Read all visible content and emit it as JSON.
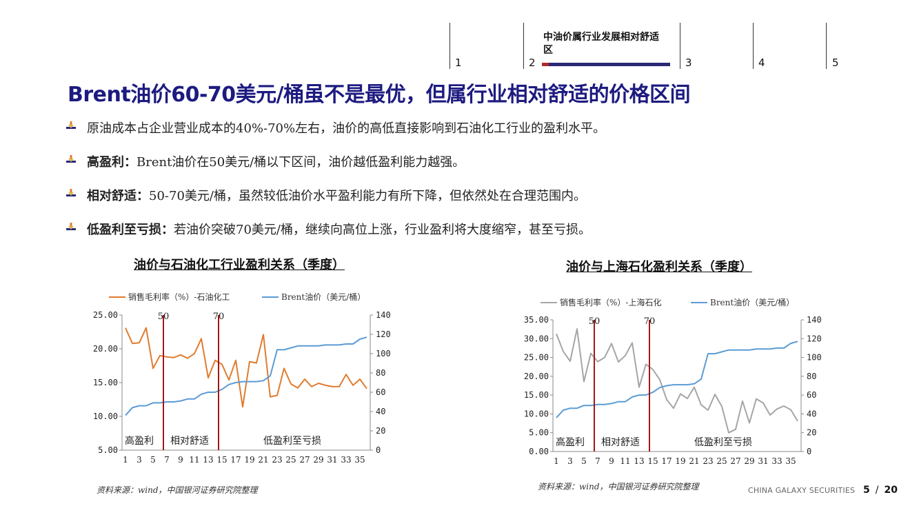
{
  "nav": {
    "items": [
      "1",
      "2",
      "3",
      "4",
      "5"
    ],
    "active_title": "中油价属行业发展相对舒适区"
  },
  "title": "Brent油价60-70美元/桶虽不是最优，但属行业相对舒适的价格区间",
  "bullets": [
    {
      "bold": "",
      "text": "原油成本占企业营业成本的40%-70%左右，油价的高低直接影响到石油化工行业的盈利水平。"
    },
    {
      "bold": "高盈利：",
      "text": "Brent油价在50美元/桶以下区间，油价越低盈利能力越强。"
    },
    {
      "bold": "相对舒适：",
      "text": "50-70美元/桶，虽然较低油价水平盈利能力有所下降，但依然处在合理范围内。"
    },
    {
      "bold": "低盈利至亏损：",
      "text": "若油价突破70美元/桶，继续向高位上涨，行业盈利将大度缩窄，甚至亏损。"
    }
  ],
  "chart_data": [
    {
      "type": "line",
      "title": "油价与石油化工行业盈利关系（季度）",
      "x": [
        1,
        2,
        3,
        4,
        5,
        6,
        7,
        8,
        9,
        10,
        11,
        12,
        13,
        14,
        15,
        16,
        17,
        18,
        19,
        20,
        21,
        22,
        23,
        24,
        25,
        26,
        27,
        28,
        29,
        30,
        31,
        32,
        33,
        34,
        35,
        36
      ],
      "x_tick_labels": [
        "1",
        "3",
        "5",
        "7",
        "9",
        "11",
        "13",
        "15",
        "17",
        "19",
        "21",
        "23",
        "25",
        "27",
        "29",
        "31",
        "33",
        "35"
      ],
      "series": [
        {
          "name": "销售毛利率（%）-石油化工",
          "axis": "left",
          "color": "#e07b2e",
          "values": [
            23.1,
            20.8,
            20.9,
            23.1,
            17.1,
            19.0,
            18.8,
            18.7,
            19.1,
            18.6,
            19.3,
            21.5,
            15.7,
            18.3,
            17.7,
            15.4,
            18.3,
            11.4,
            18.1,
            17.9,
            22.1,
            12.9,
            13.1,
            17.1,
            14.8,
            14.2,
            15.5,
            14.4,
            14.9,
            14.6,
            14.4,
            14.4,
            16.2,
            14.6,
            15.5,
            14.1
          ]
        },
        {
          "name": "Brent油价（美元/桶）",
          "axis": "right",
          "color": "#5b9bd5",
          "values": [
            36,
            44,
            46,
            46,
            49,
            49,
            50,
            50,
            51,
            53,
            53,
            58,
            60,
            60,
            63,
            68,
            70,
            71,
            71,
            71,
            72,
            77,
            104,
            104,
            106,
            108,
            108,
            108,
            108,
            109,
            109,
            109,
            110,
            110,
            115,
            117
          ]
        }
      ],
      "y_left": {
        "min": 5,
        "max": 25,
        "ticks": [
          "5.00",
          "10.00",
          "15.00",
          "20.00",
          "25.00"
        ]
      },
      "y_right": {
        "min": 0,
        "max": 140,
        "ticks": [
          "0",
          "20",
          "40",
          "60",
          "80",
          "100",
          "120",
          "140"
        ]
      },
      "vlines": [
        {
          "label": "50",
          "x": 6
        },
        {
          "label": "70",
          "x": 14
        }
      ],
      "zones": [
        "高盈利",
        "相对舒适",
        "低盈利至亏损"
      ],
      "legend_position": "top",
      "grid": false
    },
    {
      "type": "line",
      "title": "油价与上海石化盈利关系（季度）",
      "x": [
        1,
        2,
        3,
        4,
        5,
        6,
        7,
        8,
        9,
        10,
        11,
        12,
        13,
        14,
        15,
        16,
        17,
        18,
        19,
        20,
        21,
        22,
        23,
        24,
        25,
        26,
        27,
        28,
        29,
        30,
        31,
        32,
        33,
        34,
        35,
        36
      ],
      "x_tick_labels": [
        "1",
        "3",
        "5",
        "7",
        "9",
        "11",
        "13",
        "15",
        "17",
        "19",
        "21",
        "23",
        "25",
        "27",
        "29",
        "31",
        "33",
        "35"
      ],
      "series": [
        {
          "name": "销售毛利率（%）-上海石化",
          "axis": "left",
          "color": "#a5a5a5",
          "values": [
            31.3,
            26.6,
            24.0,
            32.6,
            18.6,
            26.1,
            23.9,
            25.0,
            28.7,
            23.8,
            25.5,
            28.9,
            17.1,
            23.2,
            21.8,
            19.1,
            13.8,
            11.5,
            15.3,
            14.1,
            17.1,
            12.4,
            11.0,
            15.2,
            12.0,
            5.0,
            5.9,
            13.4,
            7.6,
            14.0,
            12.9,
            9.7,
            11.3,
            12.1,
            11.1,
            8.1
          ]
        },
        {
          "name": "Brent油价（美元/桶）",
          "axis": "right",
          "color": "#5b9bd5",
          "values": [
            36,
            44,
            46,
            46,
            49,
            49,
            50,
            50,
            51,
            53,
            53,
            58,
            60,
            60,
            63,
            68,
            70,
            71,
            71,
            71,
            72,
            77,
            104,
            104,
            106,
            108,
            108,
            108,
            108,
            109,
            109,
            109,
            110,
            110,
            115,
            117
          ]
        }
      ],
      "y_left": {
        "min": 0,
        "max": 35,
        "ticks": [
          "0.00",
          "5.00",
          "10.00",
          "15.00",
          "20.00",
          "25.00",
          "30.00",
          "35.00"
        ]
      },
      "y_right": {
        "min": 0,
        "max": 140,
        "ticks": [
          "0",
          "20",
          "40",
          "60",
          "80",
          "100",
          "120",
          "140"
        ]
      },
      "vlines": [
        {
          "label": "50",
          "x": 6
        },
        {
          "label": "70",
          "x": 14
        }
      ],
      "zones": [
        "高盈利",
        "相对舒适",
        "低盈利至亏损"
      ],
      "legend_position": "top",
      "grid": false
    }
  ],
  "sources": [
    "资料来源：wind，中国银河证券研究院整理",
    "资料来源：wind，中国银河证券研究院整理"
  ],
  "footer": {
    "brand": "CHINA GALAXY SECURITIES",
    "page_current": "5",
    "page_total": "20"
  }
}
